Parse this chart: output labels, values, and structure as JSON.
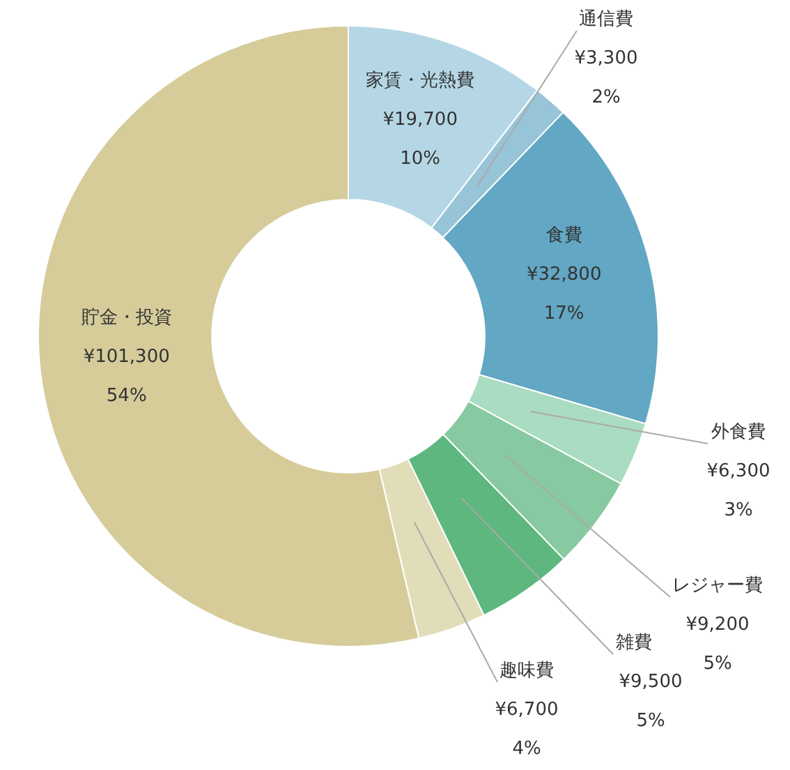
{
  "chart_data": {
    "type": "donut",
    "categories": [
      "家賃・光熱費",
      "通信費",
      "食費",
      "外食費",
      "レジャー費",
      "雑費",
      "趣味費",
      "貯金・投資"
    ],
    "values": [
      19700,
      3300,
      32800,
      6300,
      9200,
      9500,
      6700,
      101300
    ],
    "colors": [
      "#b5d7e5",
      "#97c4d7",
      "#62a7c3",
      "#a9dcc0",
      "#87c9a0",
      "#5db77f",
      "#e2ddb9",
      "#d5cc9a"
    ],
    "value_labels": [
      "¥19,700\n10%",
      "¥3,300\n2%",
      "¥32,800\n17%",
      "¥6,300\n3%",
      "¥9,200\n5%",
      "¥9,500\n5%",
      "¥6,700\n4%",
      "¥101,300\n54%"
    ],
    "legend": false
  }
}
